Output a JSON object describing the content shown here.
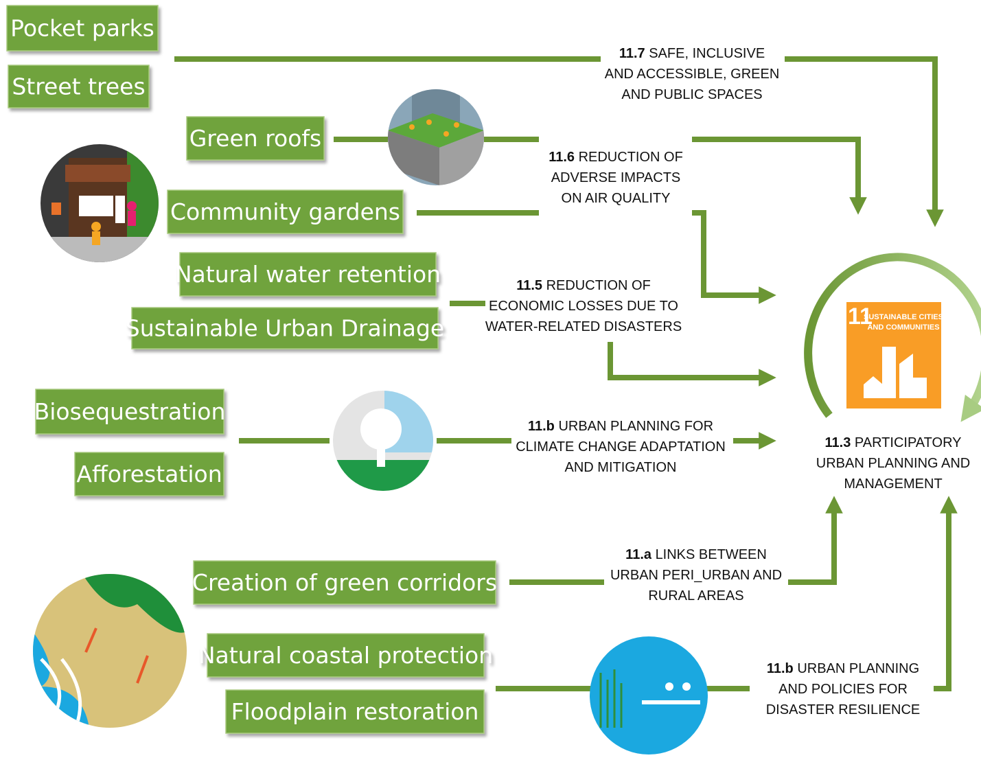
{
  "nodes": [
    {
      "label": "Pocket parks"
    },
    {
      "label": "Street trees"
    },
    {
      "label": "Green roofs"
    },
    {
      "label": "Community gardens"
    },
    {
      "label": "Natural water retention"
    },
    {
      "label": "Sustainable Urban Drainage"
    },
    {
      "label": "Biosequestration"
    },
    {
      "label": "Afforestation"
    },
    {
      "label": "Creation of green corridors"
    },
    {
      "label": "Natural coastal protection"
    },
    {
      "label": "Floodplain restoration"
    }
  ],
  "targets": [
    {
      "code": "11.7",
      "lines": [
        "SAFE, INCLUSIVE",
        "AND ACCESSIBLE, GREEN",
        "AND PUBLIC SPACES"
      ]
    },
    {
      "code": "11.6",
      "lines": [
        "REDUCTION OF",
        "ADVERSE IMPACTS",
        "ON AIR QUALITY"
      ]
    },
    {
      "code": "11.5",
      "lines": [
        "REDUCTION OF",
        "ECONOMIC LOSSES DUE TO",
        "WATER-RELATED DISASTERS"
      ]
    },
    {
      "code": "11.b",
      "lines": [
        "URBAN PLANNING FOR",
        "CLIMATE CHANGE ADAPTATION",
        "AND MITIGATION"
      ]
    },
    {
      "code": "11.a",
      "lines": [
        "LINKS BETWEEN",
        "URBAN PERI_URBAN AND",
        "RURAL AREAS"
      ]
    },
    {
      "code": "11.b",
      "lines": [
        "URBAN PLANNING",
        "AND POLICIES FOR",
        "DISASTER RESILIENCE"
      ]
    },
    {
      "code": "11.3",
      "lines": [
        "PARTICIPATORY",
        "URBAN PLANNING AND",
        "MANAGEMENT"
      ]
    }
  ],
  "goal": {
    "number": "11",
    "title": [
      "SUSTAINABLE CITIES",
      "AND COMMUNITIES"
    ]
  }
}
